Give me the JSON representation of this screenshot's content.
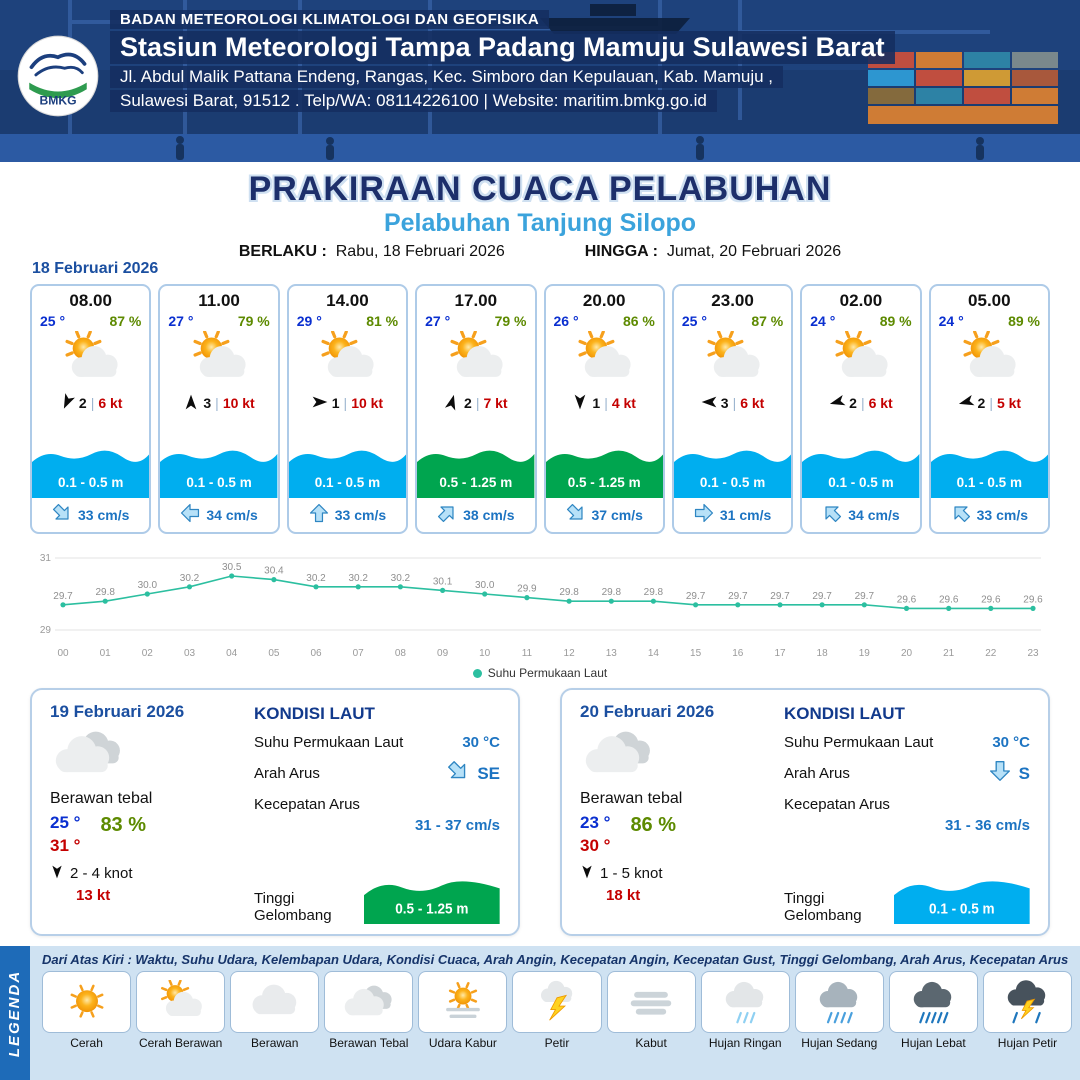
{
  "header": {
    "logo_text": "BMKG",
    "agency": "BADAN METEOROLOGI KLIMATOLOGI DAN GEOFISIKA",
    "station": "Stasiun Meteorologi Tampa Padang Mamuju Sulawesi Barat",
    "address1": "Jl. Abdul Malik Pattana Endeng, Rangas, Kec. Simboro dan Kepulauan, Kab. Mamuju ,",
    "address2": "Sulawesi Barat, 91512 . Telp/WA: 08114226100 | Website: maritim.bmkg.go.id"
  },
  "title": {
    "main": "PRAKIRAAN CUACA PELABUHAN",
    "port": "Pelabuhan Tanjung Silopo",
    "berlaku_label": "BERLAKU :",
    "berlaku_value": "Rabu, 18 Februari 2026",
    "hingga_label": "HINGGA :",
    "hingga_value": "Jumat, 20 Februari 2026"
  },
  "forecast": {
    "date": "18 Februari 2026",
    "cards": [
      {
        "time": "08.00",
        "temp": "25 °",
        "humidity": "87 %",
        "icon": "cerah-berawan",
        "wind_dir_deg": 205,
        "wind_gust": "2",
        "wind_speed": "6 kt",
        "wave": "0.1 - 0.5 m",
        "wave_color": "blue",
        "current_dir_deg": 135,
        "current": "33 cm/s"
      },
      {
        "time": "11.00",
        "temp": "27 °",
        "humidity": "79 %",
        "icon": "cerah-berawan",
        "wind_dir_deg": 0,
        "wind_gust": "3",
        "wind_speed": "10 kt",
        "wave": "0.1 - 0.5 m",
        "wave_color": "blue",
        "current_dir_deg": 270,
        "current": "34 cm/s"
      },
      {
        "time": "14.00",
        "temp": "29 °",
        "humidity": "81 %",
        "icon": "cerah-berawan",
        "wind_dir_deg": 90,
        "wind_gust": "1",
        "wind_speed": "10 kt",
        "wave": "0.1 - 0.5 m",
        "wave_color": "blue",
        "current_dir_deg": 0,
        "current": "33 cm/s"
      },
      {
        "time": "17.00",
        "temp": "27 °",
        "humidity": "79 %",
        "icon": "cerah-berawan",
        "wind_dir_deg": 15,
        "wind_gust": "2",
        "wind_speed": "7 kt",
        "wave": "0.5 - 1.25 m",
        "wave_color": "green",
        "current_dir_deg": 45,
        "current": "38 cm/s"
      },
      {
        "time": "20.00",
        "temp": "26 °",
        "humidity": "86 %",
        "icon": "cerah-berawan",
        "wind_dir_deg": 180,
        "wind_gust": "1",
        "wind_speed": "4 kt",
        "wave": "0.5 - 1.25 m",
        "wave_color": "green",
        "current_dir_deg": 135,
        "current": "37 cm/s"
      },
      {
        "time": "23.00",
        "temp": "25 °",
        "humidity": "87 %",
        "icon": "cerah-berawan",
        "wind_dir_deg": 270,
        "wind_gust": "3",
        "wind_speed": "6 kt",
        "wave": "0.1 - 0.5 m",
        "wave_color": "blue",
        "current_dir_deg": 90,
        "current": "31 cm/s"
      },
      {
        "time": "02.00",
        "temp": "24 °",
        "humidity": "89 %",
        "icon": "cerah-berawan",
        "wind_dir_deg": 255,
        "wind_gust": "2",
        "wind_speed": "6 kt",
        "wave": "0.1 - 0.5 m",
        "wave_color": "blue",
        "current_dir_deg": 315,
        "current": "34 cm/s"
      },
      {
        "time": "05.00",
        "temp": "24 °",
        "humidity": "89 %",
        "icon": "cerah-berawan",
        "wind_dir_deg": 255,
        "wind_gust": "2",
        "wind_speed": "5 kt",
        "wave": "0.1 - 0.5 m",
        "wave_color": "blue",
        "current_dir_deg": 315,
        "current": "33 cm/s"
      }
    ]
  },
  "chart_data": {
    "type": "line",
    "legend": "Suhu Permukaan Laut",
    "x": [
      "00",
      "01",
      "02",
      "03",
      "04",
      "05",
      "06",
      "07",
      "08",
      "09",
      "10",
      "11",
      "12",
      "13",
      "14",
      "15",
      "16",
      "17",
      "18",
      "19",
      "20",
      "21",
      "22",
      "23"
    ],
    "values": [
      29.7,
      29.8,
      30.0,
      30.2,
      30.5,
      30.4,
      30.2,
      30.2,
      30.2,
      30.1,
      30.0,
      29.9,
      29.8,
      29.8,
      29.8,
      29.7,
      29.7,
      29.7,
      29.7,
      29.7,
      29.6,
      29.6,
      29.6,
      29.6
    ],
    "ylim": [
      29,
      31
    ],
    "line_color": "#2cbfa0",
    "grid": true,
    "legend_position": "bottom"
  },
  "days": [
    {
      "date": "19 Februari 2026",
      "icon": "berawan-tebal",
      "condition": "Berawan tebal",
      "temp_min": "25 °",
      "temp_max": "31 °",
      "humidity": "83 %",
      "wind_range": "2  - 4 knot",
      "wind_gust": "13 kt",
      "sea_title": "KONDISI LAUT",
      "sst_label": "Suhu Permukaan Laut",
      "sst": "30 °C",
      "current_dir_label": "Arah Arus",
      "current_dir": "SE",
      "current_dir_deg": 135,
      "current_speed_label": "Kecepatan Arus",
      "current_speed": "31  - 37 cm/s",
      "wave_label": "Tinggi Gelombang",
      "wave": "0.5 - 1.25 m",
      "wave_color": "green"
    },
    {
      "date": "20 Februari 2026",
      "icon": "berawan-tebal",
      "condition": "Berawan tebal",
      "temp_min": "23 °",
      "temp_max": "30 °",
      "humidity": "86 %",
      "wind_range": "1  - 5 knot",
      "wind_gust": "18 kt",
      "sea_title": "KONDISI LAUT",
      "sst_label": "Suhu Permukaan Laut",
      "sst": "30 °C",
      "current_dir_label": "Arah Arus",
      "current_dir": "S",
      "current_dir_deg": 180,
      "current_speed_label": "Kecepatan Arus",
      "current_speed": "31  - 36 cm/s",
      "wave_label": "Tinggi Gelombang",
      "wave": "0.1 - 0.5 m",
      "wave_color": "blue"
    }
  ],
  "legend": {
    "vertical_label": "LEGENDA",
    "description": "Dari Atas Kiri : Waktu, Suhu Udara, Kelembapan Udara, Kondisi Cuaca, Arah Angin, Kecepatan Angin, Kecepatan Gust, Tinggi Gelombang, Arah Arus, Kecepatan Arus",
    "items": [
      {
        "label": "Cerah",
        "icon": "cerah"
      },
      {
        "label": "Cerah Berawan",
        "icon": "cerah-berawan"
      },
      {
        "label": "Berawan",
        "icon": "berawan"
      },
      {
        "label": "Berawan Tebal",
        "icon": "berawan-tebal"
      },
      {
        "label": "Udara Kabur",
        "icon": "udara-kabur"
      },
      {
        "label": "Petir",
        "icon": "petir"
      },
      {
        "label": "Kabut",
        "icon": "kabut"
      },
      {
        "label": "Hujan Ringan",
        "icon": "hujan-ringan"
      },
      {
        "label": "Hujan Sedang",
        "icon": "hujan-sedang"
      },
      {
        "label": "Hujan Lebat",
        "icon": "hujan-lebat"
      },
      {
        "label": "Hujan Petir",
        "icon": "hujan-petir"
      }
    ]
  },
  "colors": {
    "band_blue": "#00aeef",
    "band_green": "#00a54f",
    "temp_blue": "#0a2fd0",
    "temp_red": "#c40000",
    "humidity_green": "#5d8a00",
    "current_blue": "#1d74c2",
    "header_navy": "#1b3c71",
    "title_navy": "#1d2f6b",
    "port_blue": "#3ba3dc"
  }
}
